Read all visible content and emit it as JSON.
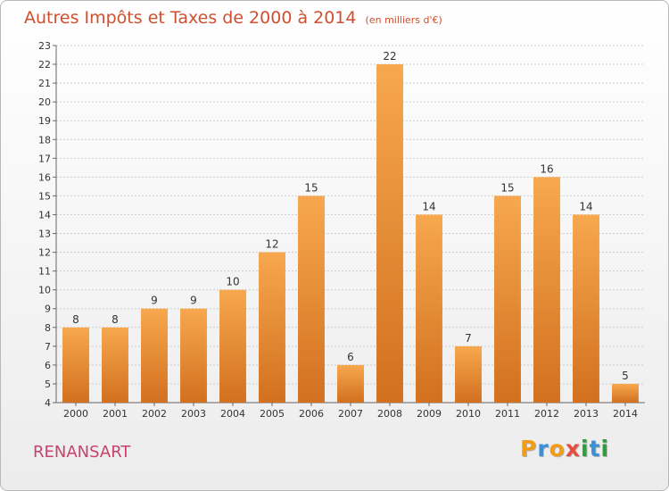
{
  "header": {
    "title": "Autres Impôts et Taxes de 2000 à 2014",
    "unit": "(en milliers d'€)"
  },
  "footer": {
    "place": "RENANSART",
    "logo_letters": [
      "P",
      "r",
      "o",
      "x",
      "i",
      "t",
      "i"
    ],
    "logo_colors": [
      "#f39c12",
      "#3a8fd6",
      "#f39c12",
      "#e74c3c",
      "#2e9e3e",
      "#3a8fd6",
      "#2e9e3e"
    ]
  },
  "colors": {
    "bar_light": "#f7a84e",
    "bar_dark": "#d2701f",
    "title": "#d04f2e",
    "place": "#c8446c",
    "grid": "#cccccc"
  },
  "chart_data": {
    "type": "bar",
    "title": "Autres Impôts et Taxes de 2000 à 2014",
    "subtitle": "(en milliers d'€)",
    "xlabel": "",
    "ylabel": "",
    "categories": [
      "2000",
      "2001",
      "2002",
      "2003",
      "2004",
      "2005",
      "2006",
      "2007",
      "2008",
      "2009",
      "2010",
      "2011",
      "2012",
      "2013",
      "2014"
    ],
    "values": [
      8,
      8,
      9,
      9,
      10,
      12,
      15,
      6,
      22,
      14,
      7,
      15,
      16,
      14,
      5
    ],
    "ylim": [
      4,
      23
    ],
    "yticks": [
      4,
      5,
      6,
      7,
      8,
      9,
      10,
      11,
      12,
      13,
      14,
      15,
      16,
      17,
      18,
      19,
      20,
      21,
      22,
      23
    ],
    "grid": true,
    "legend": "none",
    "data_labels": true
  }
}
